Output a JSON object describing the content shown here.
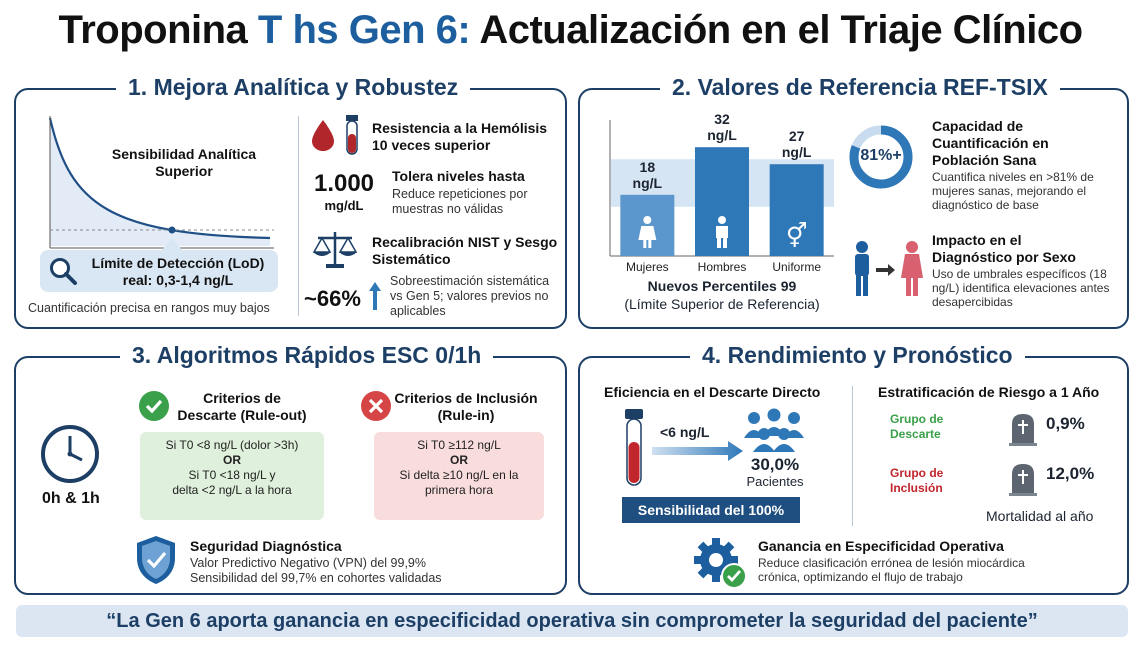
{
  "title": {
    "part1": "Troponina ",
    "highlight": "T hs Gen 6:",
    "part2": " Actualización en el Triaje Clínico"
  },
  "panel1": {
    "heading": "1. Mejora Analítica y Robustez",
    "curve_label": "Sensibilidad Analítica Superior",
    "lod_label": "Límite de Detección (LoD) real: 0,3-1,4 ng/L",
    "footer": "Cuantificación precisa en rangos muy bajos",
    "hemolysis_title": "Resistencia a la Hemólisis 10 veces superior",
    "big_value": "1.000",
    "big_unit": "mg/dL",
    "tolera_title": "Tolera niveles hasta",
    "tolera_desc": "Reduce repeticiones por muestras no válidas",
    "nist_title": "Recalibración NIST y Sesgo Sistemático",
    "pct": "~66%",
    "pct_desc": "Sobreestimación sistemática vs Gen 5; valores previos no aplicables"
  },
  "panel2": {
    "heading": "2. Valores de Referencia REF-TSIX",
    "chart_title": "Nuevos Percentiles 99",
    "chart_subtitle": "(Límite Superior de Referencia)",
    "capacity_pct": "81%+",
    "capacity_title": "Capacidad de Cuantificación en Población Sana",
    "capacity_desc": "Cuantifica niveles en >81% de mujeres sanas, mejorando el diagnóstico de base",
    "impact_title": "Impacto en el Diagnóstico por Sexo",
    "impact_desc": "Uso de umbrales específicos (18 ng/L) identifica elevaciones antes desapercibidas"
  },
  "chart_data": {
    "type": "bar",
    "categories": [
      "Mujeres",
      "Hombres",
      "Uniforme"
    ],
    "values": [
      18,
      32,
      27
    ],
    "data_labels": [
      "18 ng/L",
      "32 ng/L",
      "27 ng/L"
    ],
    "title": "Nuevos Percentiles 99",
    "subtitle": "(Límite Superior de Referencia)",
    "ylim": [
      0,
      40
    ],
    "color": "#2f78b8"
  },
  "panel3": {
    "heading": "3. Algoritmos Rápidos ESC 0/1h",
    "clock_label": "0h & 1h",
    "ruleout_title": "Criterios de Descarte (Rule-out)",
    "ruleout_l1": "Si T0 <8 ng/L (dolor >3h)",
    "ruleout_or": "OR",
    "ruleout_l2": "Si T0 <18 ng/L y",
    "ruleout_l3": "delta <2 ng/L a la hora",
    "rulein_title": "Criterios de Inclusión (Rule-in)",
    "rulein_l1": "Si T0 ≥112 ng/L",
    "rulein_or": "OR",
    "rulein_l2": "Si delta ≥10 ng/L en la",
    "rulein_l3": "primera hora",
    "security_title": "Seguridad Diagnóstica",
    "security_l1": "Valor Predictivo Negativo (VPN) del 99,9%",
    "security_l2": "Sensibilidad del 99,7% en cohortes validadas"
  },
  "panel4": {
    "heading": "4. Rendimiento y Pronóstico",
    "eff_title": "Eficiencia en el Descarte Directo",
    "threshold": "<6 ng/L",
    "patients_pct": "30,0%",
    "patients_label": "Pacientes",
    "sens_banner": "Sensibilidad del 100%",
    "risk_title": "Estratificación de Riesgo a 1 Año",
    "group1": "Grupo de Descarte",
    "group1_val": "0,9%",
    "group2": "Grupo de Inclusión",
    "group2_val": "12,0%",
    "mortality": "Mortalidad al año",
    "gain_title": "Ganancia en Especificidad Operativa",
    "gain_desc": "Reduce clasificación errónea de lesión miocárdica crónica, optimizando el flujo de trabajo"
  },
  "quote": "“La Gen 6 aporta ganancia en especificidad operativa sin comprometer la seguridad del paciente”",
  "colors": {
    "navy": "#1d3f66",
    "blue": "#2f78b8",
    "green": "#3aa04a",
    "red": "#d64545",
    "maroon": "#b0262a"
  }
}
